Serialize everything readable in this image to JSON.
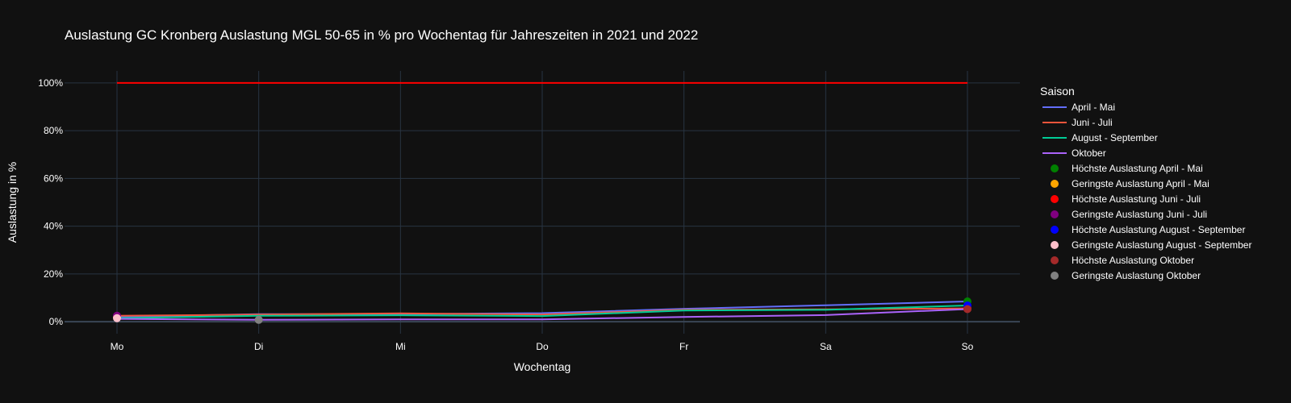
{
  "chart_data": {
    "type": "line",
    "title": "Auslastung GC Kronberg Auslastung MGL 50-65 in % pro Wochentag für Jahreszeiten in 2021 und 2022",
    "xlabel": "Wochentag",
    "ylabel": "Auslastung in %",
    "categories": [
      "Mo",
      "Di",
      "Mi",
      "Do",
      "Fr",
      "Sa",
      "So"
    ],
    "ylim": [
      -5,
      105
    ],
    "yticks": [
      0,
      20,
      40,
      60,
      80,
      100
    ],
    "ytick_labels": [
      "0%",
      "20%",
      "40%",
      "60%",
      "80%",
      "100%"
    ],
    "grid": true,
    "legend": {
      "title": "Saison",
      "position": "right"
    },
    "reference_line": {
      "y": 100,
      "color": "#ff0000",
      "from": "Mo",
      "to": "So"
    },
    "series": [
      {
        "name": "April - Mai",
        "color": "#636efa",
        "values": [
          2.0,
          3.2,
          3.2,
          3.6,
          5.4,
          6.9,
          8.5
        ]
      },
      {
        "name": "Juni - Juli",
        "color": "#ef553b",
        "values": [
          2.5,
          3.0,
          3.5,
          3.0,
          5.0,
          5.2,
          5.6
        ]
      },
      {
        "name": "August - September",
        "color": "#00cc96",
        "values": [
          1.5,
          2.5,
          2.7,
          2.4,
          4.7,
          5.0,
          6.8
        ]
      },
      {
        "name": "Oktober",
        "color": "#ab63fa",
        "values": [
          1.2,
          0.8,
          1.0,
          1.0,
          2.0,
          2.8,
          5.3
        ]
      }
    ],
    "markers": [
      {
        "name": "Höchste Auslastung April - Mai",
        "color": "#008000",
        "x": "So",
        "y": 8.5
      },
      {
        "name": "Geringste Auslastung April - Mai",
        "color": "#ffa500",
        "x": "Mo",
        "y": 2.0
      },
      {
        "name": "Höchste Auslastung Juni - Juli",
        "color": "#ff0000",
        "x": "So",
        "y": 5.6
      },
      {
        "name": "Geringste Auslastung Juni - Juli",
        "color": "#800080",
        "x": "Mo",
        "y": 2.5
      },
      {
        "name": "Höchste Auslastung August - September",
        "color": "#0000ff",
        "x": "So",
        "y": 6.8
      },
      {
        "name": "Geringste Auslastung August - September",
        "color": "#ffc0cb",
        "x": "Mo",
        "y": 1.5
      },
      {
        "name": "Höchste Auslastung Oktober",
        "color": "#a52a2a",
        "x": "So",
        "y": 5.3
      },
      {
        "name": "Geringste Auslastung Oktober",
        "color": "#808080",
        "x": "Di",
        "y": 0.8
      }
    ]
  }
}
